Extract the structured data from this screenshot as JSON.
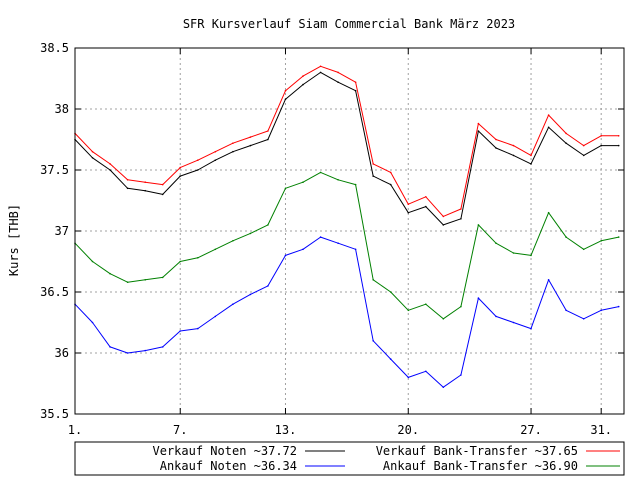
{
  "chart_data": {
    "type": "line",
    "title": "SFR Kursverlauf Siam Commercial Bank März 2023",
    "ylabel": "Kurs [THB]",
    "xlabel": "",
    "xlim": [
      1,
      32.3
    ],
    "ylim": [
      35.5,
      38.5
    ],
    "grid": true,
    "legend_position": "bottom",
    "x_ticks": [
      {
        "value": 1,
        "label": "1."
      },
      {
        "value": 7,
        "label": "7."
      },
      {
        "value": 13,
        "label": "13."
      },
      {
        "value": 20,
        "label": "20."
      },
      {
        "value": 27,
        "label": "27."
      },
      {
        "value": 31,
        "label": "31."
      }
    ],
    "y_ticks": [
      35.5,
      36,
      36.5,
      37,
      37.5,
      38,
      38.5
    ],
    "x": [
      1,
      2,
      3,
      4,
      5,
      6,
      7,
      8,
      9,
      10,
      11,
      12,
      13,
      14,
      15,
      16,
      17,
      18,
      19,
      20,
      21,
      22,
      23,
      24,
      25,
      26,
      27,
      28,
      29,
      30,
      31,
      32
    ],
    "series": [
      {
        "name": "Verkauf Noten",
        "legend_label": "Verkauf Noten ~37.72",
        "color": "#000000",
        "values": [
          37.75,
          37.6,
          37.5,
          37.35,
          37.33,
          37.3,
          37.45,
          37.5,
          37.58,
          37.65,
          37.7,
          37.75,
          38.08,
          38.2,
          38.3,
          38.22,
          38.15,
          37.45,
          37.38,
          37.15,
          37.2,
          37.05,
          37.1,
          37.82,
          37.68,
          37.62,
          37.55,
          37.85,
          37.72,
          37.62,
          37.7,
          37.7
        ]
      },
      {
        "name": "Ankauf Noten",
        "legend_label": "Ankauf  Noten ~36.34",
        "color": "#0000ff",
        "values": [
          36.4,
          36.25,
          36.05,
          36.0,
          36.02,
          36.05,
          36.18,
          36.2,
          36.3,
          36.4,
          36.48,
          36.55,
          36.8,
          36.85,
          36.95,
          36.9,
          36.85,
          36.1,
          35.95,
          35.8,
          35.85,
          35.72,
          35.82,
          36.45,
          36.3,
          36.25,
          36.2,
          36.6,
          36.35,
          36.28,
          36.35,
          36.38
        ]
      },
      {
        "name": "Verkauf Bank-Transfer",
        "legend_label": "Verkauf Bank-Transfer ~37.65",
        "color": "#ff0000",
        "values": [
          37.8,
          37.65,
          37.55,
          37.42,
          37.4,
          37.38,
          37.52,
          37.58,
          37.65,
          37.72,
          37.77,
          37.82,
          38.15,
          38.27,
          38.35,
          38.3,
          38.22,
          37.55,
          37.48,
          37.22,
          37.28,
          37.12,
          37.18,
          37.88,
          37.75,
          37.7,
          37.62,
          37.95,
          37.8,
          37.7,
          37.78,
          37.78
        ]
      },
      {
        "name": "Ankauf Bank-Transfer",
        "legend_label": "Ankauf  Bank-Transfer ~36.90",
        "color": "#008000",
        "values": [
          36.9,
          36.75,
          36.65,
          36.58,
          36.6,
          36.62,
          36.75,
          36.78,
          36.85,
          36.92,
          36.98,
          37.05,
          37.35,
          37.4,
          37.48,
          37.42,
          37.38,
          36.6,
          36.5,
          36.35,
          36.4,
          36.28,
          36.38,
          37.05,
          36.9,
          36.82,
          36.8,
          37.15,
          36.95,
          36.85,
          36.92,
          36.95
        ]
      }
    ]
  }
}
